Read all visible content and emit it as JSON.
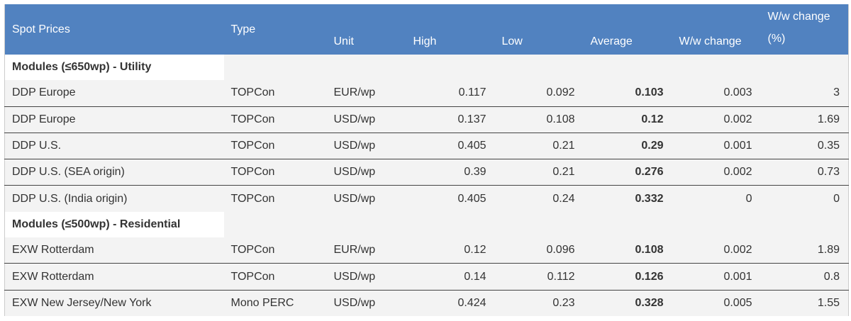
{
  "table": {
    "header": [
      "Spot Prices",
      "Type",
      "Unit",
      "High",
      "Low",
      "Average",
      "W/w change",
      "W/w change (%)"
    ],
    "sections": [
      {
        "title": "Modules (≤650wp) - Utility",
        "rows": [
          [
            "DDP Europe",
            "TOPCon",
            "EUR/wp",
            0.117,
            0.092,
            0.103,
            0.003,
            3
          ],
          [
            "DDP Europe",
            "TOPCon",
            "USD/wp",
            0.137,
            0.108,
            0.12,
            0.002,
            1.69
          ],
          [
            "DDP U.S.",
            "TOPCon",
            "USD/wp",
            0.405,
            0.21,
            0.29,
            0.001,
            0.35
          ],
          [
            "DDP U.S. (SEA origin)",
            "TOPCon",
            "USD/wp",
            0.39,
            0.21,
            0.276,
            0.002,
            0.73
          ],
          [
            "DDP U.S. (India origin)",
            "TOPCon",
            "USD/wp",
            0.405,
            0.24,
            0.332,
            0,
            0
          ]
        ]
      },
      {
        "title": "Modules (≤500wp) - Residential",
        "rows": [
          [
            "EXW Rotterdam",
            "TOPCon",
            "EUR/wp",
            0.12,
            0.096,
            0.108,
            0.002,
            1.89
          ],
          [
            "EXW Rotterdam",
            "TOPCon",
            "USD/wp",
            0.14,
            0.112,
            0.126,
            0.001,
            0.8
          ],
          [
            "EXW New Jersey/New York",
            "Mono PERC",
            "USD/wp",
            0.424,
            0.23,
            0.328,
            0.005,
            1.55
          ]
        ]
      }
    ]
  }
}
